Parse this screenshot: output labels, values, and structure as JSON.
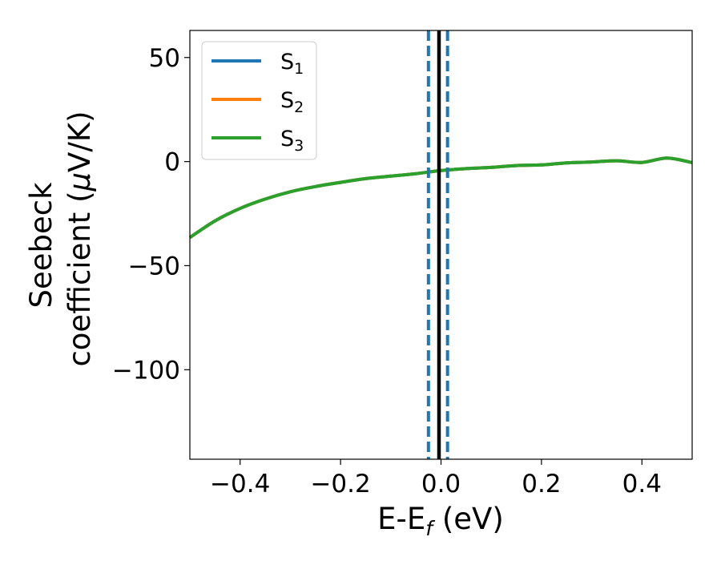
{
  "chart_data": {
    "type": "line",
    "title": "",
    "xlabel": "E-E_f (eV)",
    "xlabel_parts": {
      "main": "E-E",
      "sub": "f",
      "unit": " (eV)"
    },
    "ylabel_line1": "Seebeck",
    "ylabel_line2": {
      "prefix": "coefficient  (",
      "mu": "μ",
      "suffix": "V/K)"
    },
    "xlim": [
      -0.5,
      0.5
    ],
    "ylim": [
      -143,
      63
    ],
    "xticks": [
      -0.4,
      -0.2,
      0.0,
      0.2,
      0.4
    ],
    "xtick_labels": [
      "−0.4",
      "−0.2",
      "0.0",
      "0.2",
      "0.4"
    ],
    "yticks": [
      50,
      0,
      -50,
      -100
    ],
    "ytick_labels": [
      "50",
      "0",
      "−50",
      "−100"
    ],
    "legend_position": "upper-left",
    "series": [
      {
        "name": "S",
        "sub": "1",
        "color": "#1f77b4",
        "x": [
          -0.5,
          -0.45,
          -0.4,
          -0.35,
          -0.3,
          -0.25,
          -0.2,
          -0.15,
          -0.1,
          -0.05,
          0.0,
          0.05,
          0.1,
          0.15,
          0.2,
          0.25,
          0.3,
          0.35,
          0.4,
          0.45,
          0.5
        ],
        "y": [
          -36.5,
          -28.5,
          -22.5,
          -18,
          -14.5,
          -12,
          -10,
          -8.2,
          -7,
          -5.8,
          -4.3,
          -3.4,
          -2.8,
          -1.9,
          -1.6,
          -0.6,
          -0.2,
          0.4,
          -0.4,
          1.7,
          -0.5
        ]
      },
      {
        "name": "S",
        "sub": "2",
        "color": "#ff7f0e",
        "x": [
          -0.5,
          -0.45,
          -0.4,
          -0.35,
          -0.3,
          -0.25,
          -0.2,
          -0.15,
          -0.1,
          -0.05,
          0.0,
          0.05,
          0.1,
          0.15,
          0.2,
          0.25,
          0.3,
          0.35,
          0.4,
          0.45,
          0.5
        ],
        "y": [
          -36.5,
          -28.5,
          -22.5,
          -18,
          -14.5,
          -12,
          -10,
          -8.2,
          -7,
          -5.8,
          -4.3,
          -3.4,
          -2.8,
          -1.9,
          -1.6,
          -0.6,
          -0.2,
          0.4,
          -0.4,
          1.7,
          -0.5
        ]
      },
      {
        "name": "S",
        "sub": "3",
        "color": "#2ca02c",
        "x": [
          -0.5,
          -0.45,
          -0.4,
          -0.35,
          -0.3,
          -0.25,
          -0.2,
          -0.15,
          -0.1,
          -0.05,
          0.0,
          0.05,
          0.1,
          0.15,
          0.2,
          0.25,
          0.3,
          0.35,
          0.4,
          0.45,
          0.5
        ],
        "y": [
          -36.5,
          -28.5,
          -22.5,
          -18,
          -14.5,
          -12,
          -10,
          -8.2,
          -7,
          -5.8,
          -4.3,
          -3.4,
          -2.8,
          -1.9,
          -1.6,
          -0.6,
          -0.2,
          0.4,
          -0.4,
          1.7,
          -0.5
        ]
      }
    ],
    "vlines": [
      {
        "x": -0.025,
        "color": "#1f77b4",
        "style": "dashed"
      },
      {
        "x": 0.013,
        "color": "#1f77b4",
        "style": "dashed"
      },
      {
        "x": -0.004,
        "color": "#000000",
        "style": "solid"
      }
    ]
  }
}
